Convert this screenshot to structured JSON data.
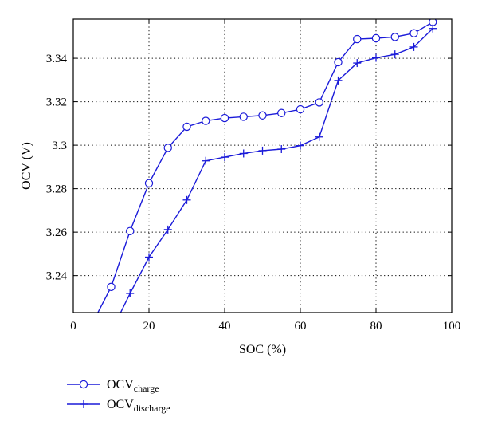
{
  "chart_data": {
    "type": "line",
    "title": "",
    "xlabel": "SOC (%)",
    "ylabel": "OCV (V)",
    "xlim": [
      0,
      100
    ],
    "ylim": [
      3.223,
      3.358
    ],
    "grid": true,
    "x_ticks": [
      0,
      20,
      40,
      60,
      80,
      100
    ],
    "x_tick_labels": [
      "0",
      "20",
      "40",
      "60",
      "80",
      "100"
    ],
    "y_ticks": [
      3.24,
      3.26,
      3.28,
      3.3,
      3.32,
      3.34
    ],
    "y_tick_labels": [
      "3.24",
      "3.26",
      "3.28",
      "3.3",
      "3.32",
      "3.34"
    ],
    "legend_position": "below",
    "color": "#1a1ad9",
    "series": [
      {
        "name": "OCV",
        "name_sub": "charge",
        "marker": "circle",
        "line_start": [
          6.5,
          3.223
        ],
        "x": [
          10,
          15,
          20,
          25,
          30,
          35,
          40,
          45,
          50,
          55,
          60,
          65,
          70,
          75,
          80,
          85,
          90,
          95
        ],
        "values": [
          3.2348,
          3.2605,
          3.2825,
          3.2988,
          3.3085,
          3.3112,
          3.3125,
          3.3131,
          3.3137,
          3.3148,
          3.3165,
          3.3197,
          3.3382,
          3.3488,
          3.3492,
          3.3498,
          3.3515,
          3.3567
        ]
      },
      {
        "name": "OCV",
        "name_sub": "discharge",
        "marker": "plus",
        "line_start": [
          12.5,
          3.223
        ],
        "x": [
          15,
          20,
          25,
          30,
          35,
          40,
          45,
          50,
          55,
          60,
          65,
          70,
          75,
          80,
          85,
          90,
          95
        ],
        "values": [
          3.2318,
          3.2485,
          3.2612,
          3.2748,
          3.2928,
          3.2945,
          3.2962,
          3.2975,
          3.2982,
          3.2998,
          3.3038,
          3.3298,
          3.3378,
          3.3402,
          3.3418,
          3.3452,
          3.3537
        ]
      }
    ]
  }
}
